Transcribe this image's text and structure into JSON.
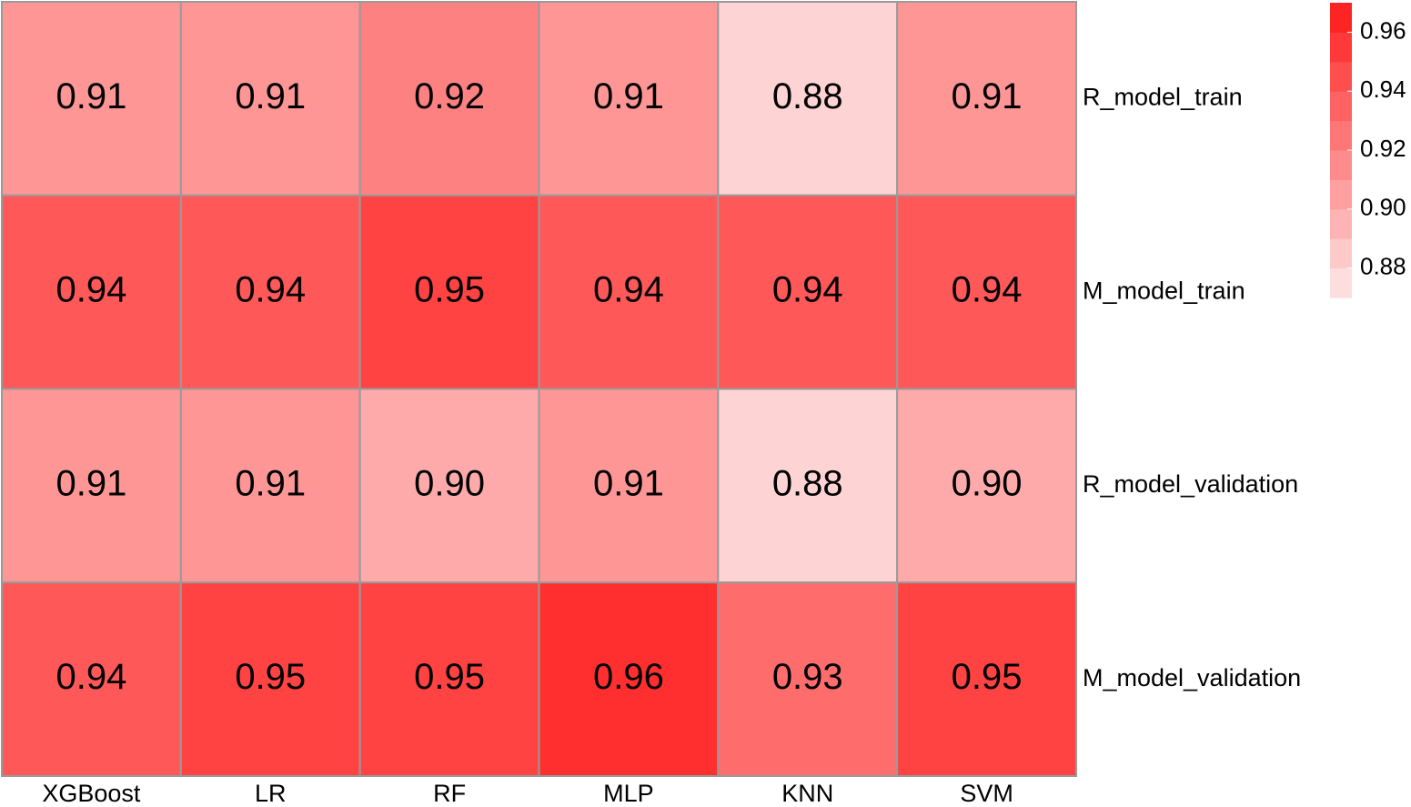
{
  "chart_data": {
    "type": "heatmap",
    "x": [
      "XGBoost",
      "LR",
      "RF",
      "MLP",
      "KNN",
      "SVM"
    ],
    "y": [
      "R_model_train",
      "M_model_train",
      "R_model_validation",
      "M_model_validation"
    ],
    "values": [
      [
        0.91,
        0.91,
        0.92,
        0.91,
        0.88,
        0.91
      ],
      [
        0.94,
        0.94,
        0.95,
        0.94,
        0.94,
        0.94
      ],
      [
        0.91,
        0.91,
        0.9,
        0.91,
        0.88,
        0.9
      ],
      [
        0.94,
        0.95,
        0.95,
        0.96,
        0.93,
        0.95
      ]
    ],
    "value_labels": [
      [
        "0.91",
        "0.91",
        "0.92",
        "0.91",
        "0.88",
        "0.91"
      ],
      [
        "0.94",
        "0.94",
        "0.95",
        "0.94",
        "0.94",
        "0.94"
      ],
      [
        "0.91",
        "0.91",
        "0.90",
        "0.91",
        "0.88",
        "0.90"
      ],
      [
        "0.94",
        "0.95",
        "0.95",
        "0.96",
        "0.93",
        "0.95"
      ]
    ],
    "zlim": [
      0.87,
      0.97
    ],
    "zticks": [
      0.88,
      {
        "value": 0.9,
        "label": "0.90"
      },
      0.92,
      0.94,
      0.96
    ],
    "colormap": [
      "#fde8e8",
      "#ff1a1a"
    ],
    "cell_border": "#9a9a9a"
  }
}
